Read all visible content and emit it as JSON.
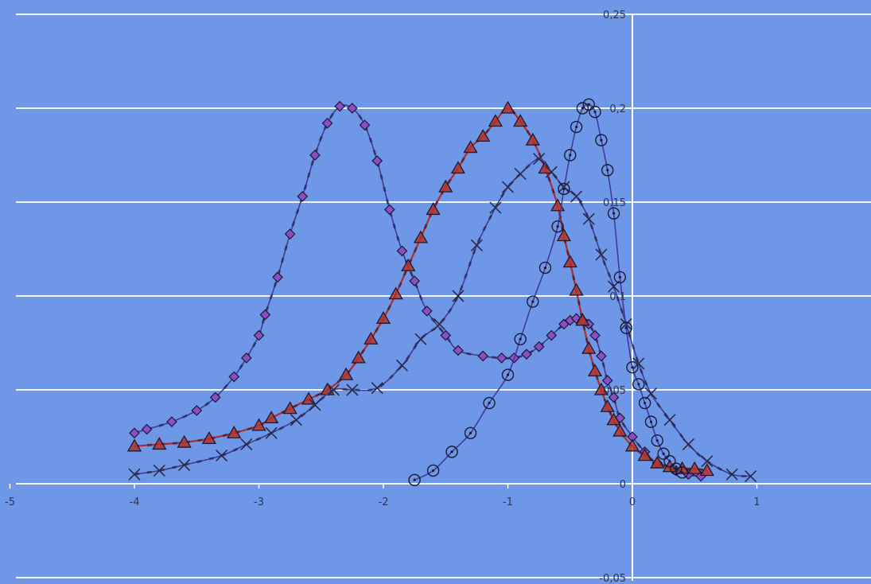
{
  "chart_data": {
    "type": "line",
    "title": "",
    "xlabel": "",
    "ylabel": "",
    "xlim": [
      -5,
      2
    ],
    "ylim": [
      -0.05,
      0.25
    ],
    "grid": true,
    "legend": "none",
    "x_ticks": [
      {
        "value": -5,
        "label": "-5"
      },
      {
        "value": -4,
        "label": "-4"
      },
      {
        "value": -3,
        "label": "-3"
      },
      {
        "value": -2,
        "label": "-2"
      },
      {
        "value": -1,
        "label": "-1"
      },
      {
        "value": 0,
        "label": "0"
      },
      {
        "value": 1,
        "label": "1"
      }
    ],
    "y_ticks": [
      {
        "value": 0.25,
        "label": "0,25"
      },
      {
        "value": 0.2,
        "label": "0,2"
      },
      {
        "value": 0.15,
        "label": "0,15"
      },
      {
        "value": 0.1,
        "label": "0,1"
      },
      {
        "value": 0.05,
        "label": "0,05"
      },
      {
        "value": 0,
        "label": "0"
      },
      {
        "value": -0.05,
        "label": "-0,05"
      }
    ],
    "colors": {
      "background": "#6f97e8",
      "grid": "#ffffff",
      "line": "#3a2f86",
      "triangle_line": "#b02a2a",
      "diamond_fill": "#8a4fc8",
      "triangle_fill": "#b5342c",
      "marker_stroke": "#1a1a2e"
    },
    "series": [
      {
        "marker": "diamond",
        "line_color": "#3f3a98",
        "x": [
          -4.0,
          -3.9,
          -3.7,
          -3.5,
          -3.35,
          -3.2,
          -3.1,
          -3.0,
          -2.95,
          -2.85,
          -2.75,
          -2.65,
          -2.55,
          -2.45,
          -2.35,
          -2.25,
          -2.15,
          -2.05,
          -1.95,
          -1.85,
          -1.75,
          -1.65,
          -1.5,
          -1.4,
          -1.2,
          -1.05,
          -0.95,
          -0.85,
          -0.75,
          -0.65,
          -0.55,
          -0.5,
          -0.45,
          -0.4,
          -0.35,
          -0.3,
          -0.25,
          -0.2,
          -0.15,
          -0.1,
          0.0,
          0.1,
          0.2,
          0.35,
          0.45,
          0.55
        ],
        "y": [
          0.027,
          0.029,
          0.033,
          0.039,
          0.046,
          0.057,
          0.067,
          0.079,
          0.09,
          0.11,
          0.133,
          0.153,
          0.175,
          0.192,
          0.201,
          0.2,
          0.191,
          0.172,
          0.146,
          0.124,
          0.108,
          0.092,
          0.079,
          0.071,
          0.068,
          0.067,
          0.067,
          0.069,
          0.073,
          0.079,
          0.085,
          0.087,
          0.088,
          0.087,
          0.085,
          0.079,
          0.068,
          0.055,
          0.046,
          0.035,
          0.025,
          0.017,
          0.011,
          0.007,
          0.005,
          0.004
        ]
      },
      {
        "marker": "triangle",
        "line_color": "#b02a2a",
        "x": [
          -4.0,
          -3.8,
          -3.6,
          -3.4,
          -3.2,
          -3.0,
          -2.9,
          -2.75,
          -2.6,
          -2.45,
          -2.3,
          -2.2,
          -2.1,
          -2.0,
          -1.9,
          -1.8,
          -1.7,
          -1.6,
          -1.5,
          -1.4,
          -1.3,
          -1.2,
          -1.1,
          -1.0,
          -0.9,
          -0.8,
          -0.7,
          -0.6,
          -0.55,
          -0.5,
          -0.45,
          -0.4,
          -0.35,
          -0.3,
          -0.25,
          -0.2,
          -0.15,
          -0.1,
          0.0,
          0.1,
          0.2,
          0.3,
          0.4,
          0.5,
          0.6
        ],
        "y": [
          0.02,
          0.021,
          0.022,
          0.024,
          0.027,
          0.031,
          0.035,
          0.04,
          0.045,
          0.05,
          0.058,
          0.067,
          0.077,
          0.088,
          0.101,
          0.116,
          0.131,
          0.146,
          0.158,
          0.168,
          0.179,
          0.185,
          0.193,
          0.2,
          0.193,
          0.183,
          0.168,
          0.148,
          0.132,
          0.118,
          0.103,
          0.087,
          0.072,
          0.06,
          0.05,
          0.041,
          0.034,
          0.028,
          0.02,
          0.015,
          0.011,
          0.009,
          0.008,
          0.008,
          0.007
        ]
      },
      {
        "marker": "x",
        "line_color": "#3f3a98",
        "x": [
          -4.0,
          -3.8,
          -3.6,
          -3.3,
          -3.1,
          -2.9,
          -2.7,
          -2.55,
          -2.4,
          -2.25,
          -2.05,
          -1.85,
          -1.7,
          -1.55,
          -1.4,
          -1.25,
          -1.1,
          -1.0,
          -0.9,
          -0.75,
          -0.65,
          -0.55,
          -0.45,
          -0.35,
          -0.25,
          -0.15,
          -0.05,
          0.05,
          0.15,
          0.3,
          0.45,
          0.6,
          0.8,
          0.95
        ],
        "y": [
          0.005,
          0.007,
          0.01,
          0.015,
          0.021,
          0.027,
          0.034,
          0.042,
          0.05,
          0.05,
          0.051,
          0.063,
          0.077,
          0.085,
          0.1,
          0.127,
          0.147,
          0.158,
          0.165,
          0.173,
          0.166,
          0.158,
          0.153,
          0.141,
          0.122,
          0.105,
          0.085,
          0.064,
          0.048,
          0.034,
          0.021,
          0.012,
          0.005,
          0.004
        ]
      },
      {
        "marker": "circle",
        "line_color": "#3f3a98",
        "x": [
          -1.75,
          -1.6,
          -1.45,
          -1.3,
          -1.15,
          -1.0,
          -0.9,
          -0.8,
          -0.7,
          -0.6,
          -0.55,
          -0.5,
          -0.45,
          -0.4,
          -0.35,
          -0.3,
          -0.25,
          -0.2,
          -0.15,
          -0.1,
          -0.05,
          0.0,
          0.05,
          0.1,
          0.15,
          0.2,
          0.25,
          0.3,
          0.35,
          0.4
        ],
        "y": [
          0.002,
          0.007,
          0.017,
          0.027,
          0.043,
          0.058,
          0.077,
          0.097,
          0.115,
          0.137,
          0.157,
          0.175,
          0.19,
          0.2,
          0.202,
          0.198,
          0.183,
          0.167,
          0.144,
          0.11,
          0.083,
          0.062,
          0.053,
          0.043,
          0.033,
          0.023,
          0.016,
          0.012,
          0.008,
          0.006
        ]
      }
    ]
  }
}
